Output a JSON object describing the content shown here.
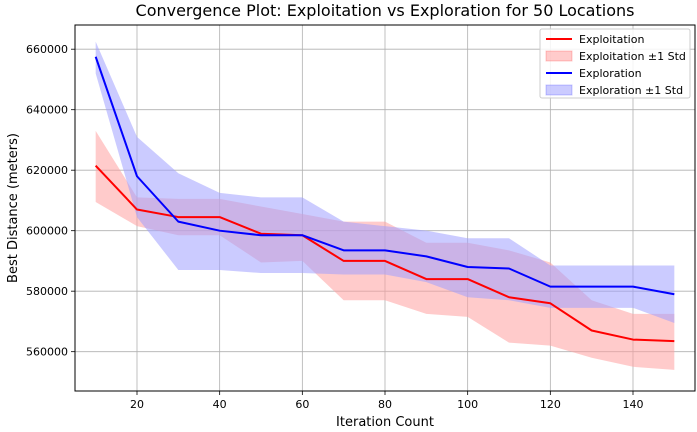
{
  "chart_data": {
    "type": "line",
    "title": "Convergence Plot: Exploitation vs Exploration for 50 Locations",
    "xlabel": "Iteration Count",
    "ylabel": "Best Distance (meters)",
    "xlim": [
      5,
      155
    ],
    "ylim": [
      547000,
      668000
    ],
    "xticks": [
      20,
      40,
      60,
      80,
      100,
      120,
      140
    ],
    "xtick_labels": [
      "20",
      "40",
      "60",
      "80",
      "100",
      "120",
      "140"
    ],
    "yticks": [
      560000,
      580000,
      600000,
      620000,
      640000,
      660000
    ],
    "ytick_labels": [
      "560000",
      "580000",
      "600000",
      "620000",
      "640000",
      "660000"
    ],
    "grid": true,
    "legend_position": "top-right",
    "x": [
      10,
      20,
      30,
      40,
      50,
      60,
      70,
      80,
      90,
      100,
      110,
      120,
      130,
      140,
      150
    ],
    "series": [
      {
        "name": "Exploitation",
        "band_name": "Exploitation ±1 Std",
        "color": "#ff0000",
        "fill": "#ffa0a0",
        "values": [
          621500,
          607000,
          604500,
          604500,
          599000,
          598500,
          590000,
          590000,
          584000,
          584000,
          578000,
          576000,
          567000,
          564000,
          563500
        ],
        "upper": [
          633000,
          611000,
          610500,
          610500,
          608000,
          605500,
          603000,
          603000,
          596000,
          596000,
          593500,
          589500,
          577000,
          572500,
          572500
        ],
        "lower": [
          609500,
          601500,
          598500,
          598500,
          589500,
          590000,
          577000,
          577000,
          572500,
          571500,
          563000,
          562000,
          558000,
          555000,
          554000
        ]
      },
      {
        "name": "Exploration",
        "band_name": "Exploration ±1 Std",
        "color": "#0000ff",
        "fill": "#a0a0ff",
        "values": [
          657500,
          618000,
          603000,
          600000,
          598500,
          598500,
          593500,
          593500,
          591500,
          588000,
          587500,
          581500,
          581500,
          581500,
          579000
        ],
        "upper": [
          662500,
          631000,
          619000,
          612500,
          611000,
          611000,
          603000,
          601500,
          600000,
          597500,
          597500,
          588500,
          588500,
          588500,
          588500
        ],
        "lower": [
          652000,
          604500,
          587000,
          587000,
          586000,
          586000,
          585500,
          585500,
          583000,
          578000,
          577000,
          574500,
          574500,
          574500,
          569500
        ]
      }
    ]
  }
}
